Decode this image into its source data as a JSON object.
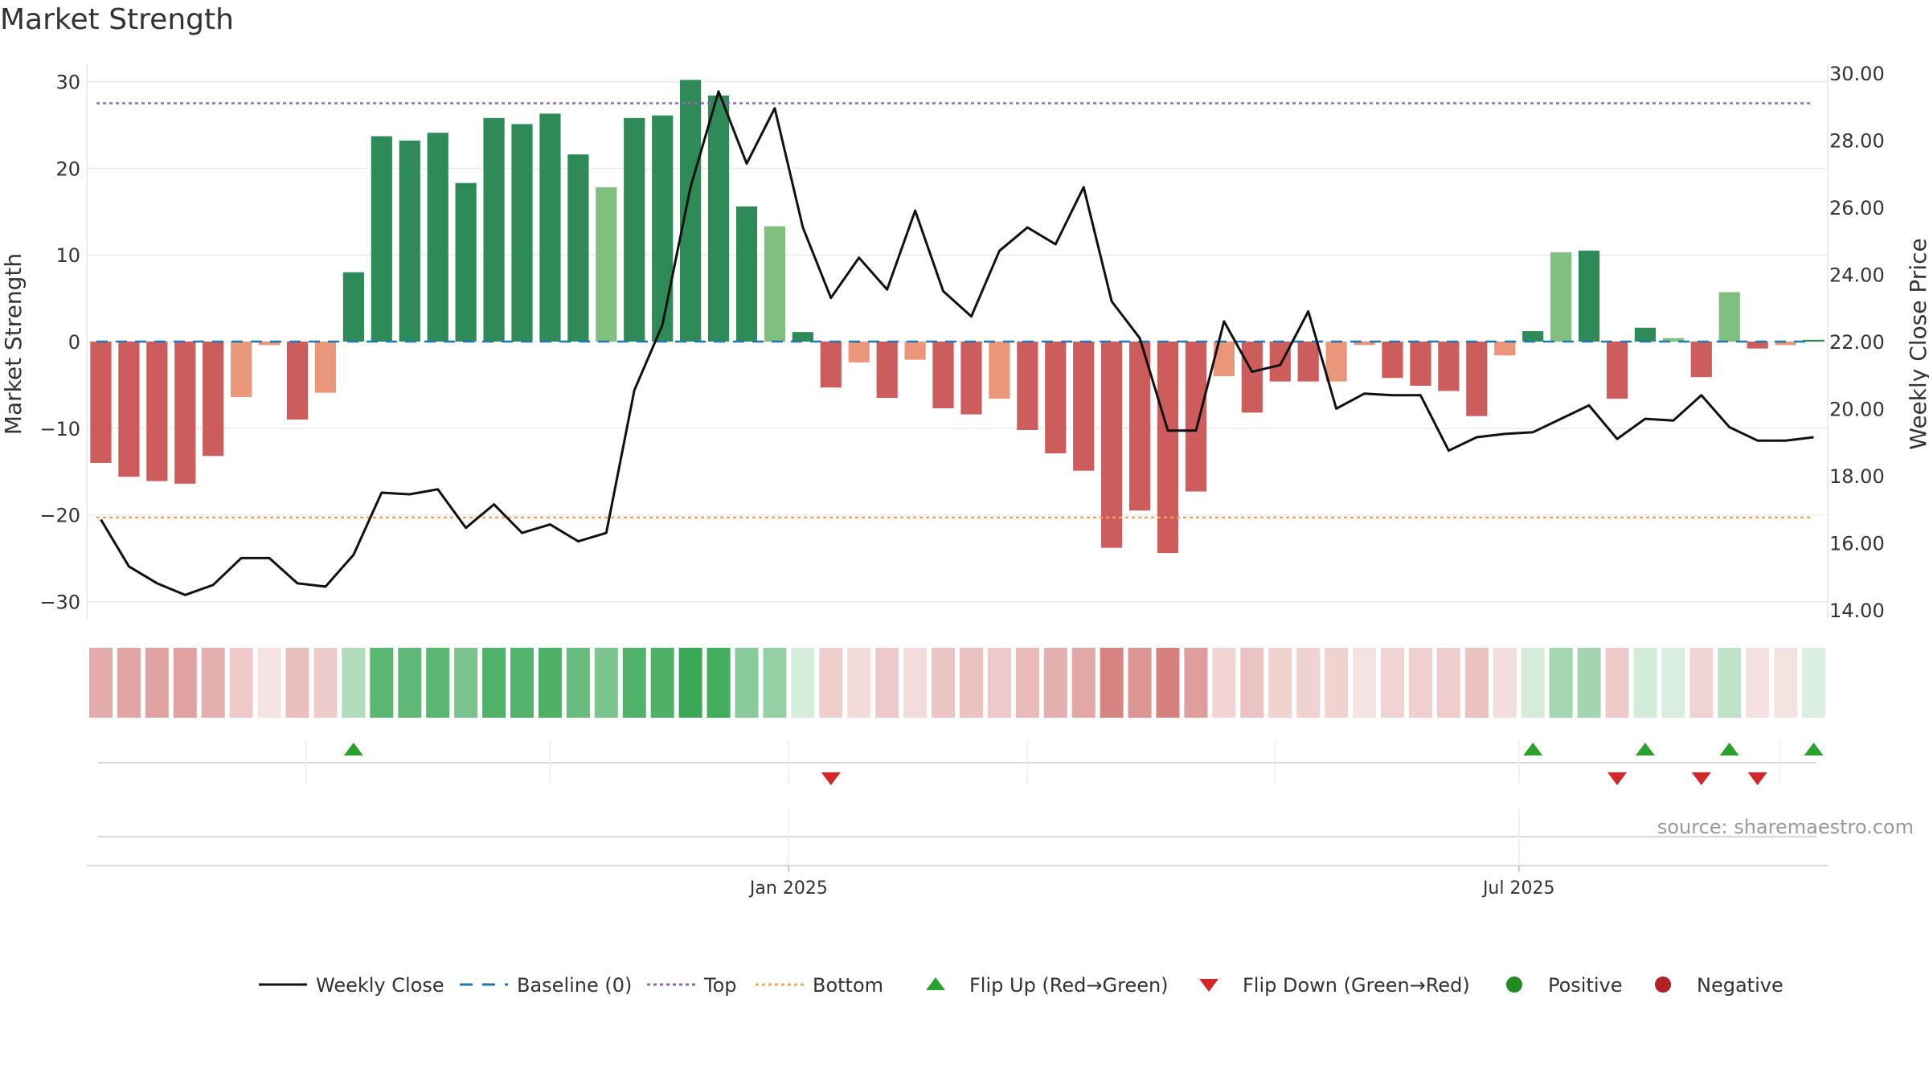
{
  "chart_data": {
    "type": "bar",
    "title": "Market Strength",
    "source_note": "source: sharemaestro.com",
    "left_axis": {
      "label": "Market Strength",
      "range": [
        -32,
        32
      ],
      "ticks": [
        30,
        20,
        10,
        0,
        -10,
        -20,
        -30
      ],
      "tick_labels": [
        "30",
        "20",
        "10",
        "0",
        "−10",
        "−20",
        "−30"
      ]
    },
    "right_axis": {
      "label": "Weekly Close Price",
      "range": [
        13.74,
        30.26
      ],
      "ticks": [
        30,
        28,
        26,
        24,
        22,
        20,
        18,
        16,
        14
      ],
      "tick_labels": [
        "30.00",
        "28.00",
        "26.00",
        "24.00",
        "22.00",
        "20.00",
        "18.00",
        "16.00",
        "14.00"
      ]
    },
    "x_axis": {
      "tick_labels": [
        "Jan 2025",
        "Jul 2025"
      ],
      "tick_indices": [
        24.5,
        50.5
      ],
      "minor_gridline_indices": [
        7.3,
        16,
        33,
        41.8
      ]
    },
    "reference_lines": {
      "baseline": 0,
      "top": 27.5,
      "bottom": -20.3
    },
    "bar_values": [
      -14,
      -15.6,
      -16.1,
      -16.4,
      -13.2,
      -6.4,
      -0.4,
      -9,
      -5.9,
      8,
      23.7,
      23.2,
      24.1,
      18.3,
      25.8,
      25.1,
      26.3,
      21.6,
      17.8,
      25.8,
      26.1,
      30.2,
      28.4,
      15.6,
      13.3,
      1.1,
      -5.3,
      -2.4,
      -6.5,
      -2.1,
      -7.7,
      -8.4,
      -6.6,
      -10.2,
      -12.9,
      -14.9,
      -23.8,
      -19.5,
      -24.4,
      -17.3,
      -4,
      -8.2,
      -4.6,
      -4.6,
      -4.6,
      -0.4,
      -4.2,
      -5.1,
      -5.7,
      -8.6,
      -1.6,
      1.2,
      10.3,
      10.5,
      -6.6,
      1.6,
      0.4,
      -4.1,
      5.7,
      -0.8,
      -0.4,
      0.2
    ],
    "weekly_close": [
      16.7,
      15.3,
      14.8,
      14.45,
      14.75,
      15.55,
      15.55,
      14.8,
      14.7,
      15.65,
      17.5,
      17.45,
      17.6,
      16.45,
      17.15,
      16.3,
      16.55,
      16.05,
      16.3,
      20.55,
      22.5,
      26.6,
      29.45,
      27.3,
      28.95,
      25.4,
      23.3,
      24.5,
      23.55,
      25.9,
      23.5,
      22.75,
      24.7,
      25.4,
      24.9,
      26.6,
      23.2,
      22.1,
      19.35,
      19.35,
      22.6,
      21.1,
      21.3,
      22.9,
      20,
      20.45,
      20.4,
      20.4,
      18.75,
      19.15,
      19.25,
      19.3,
      19.7,
      20.1,
      19.1,
      19.7,
      19.65,
      20.4,
      19.45,
      19.05,
      19.05,
      19.15
    ],
    "series_colors": {
      "line": "#111111",
      "baseline": "#1f77b4",
      "top": "#9467bd",
      "bottom": "#f4a261",
      "bar_pos_strong": "#2e8b57",
      "bar_pos_weak": "#7fbf7f",
      "bar_neg_strong": "#cd5c5c",
      "bar_neg_weak": "#e9967a"
    },
    "flip_up_indices": [
      9,
      51,
      55,
      58,
      61
    ],
    "flip_down_indices": [
      26,
      54,
      57,
      59
    ],
    "legend": [
      {
        "label": "Weekly Close",
        "kind": "line",
        "color": "#111111"
      },
      {
        "label": "Baseline (0)",
        "kind": "dashed",
        "color": "#1f77b4"
      },
      {
        "label": "Top",
        "kind": "dotted",
        "color": "#9467bd"
      },
      {
        "label": "Bottom",
        "kind": "dotted",
        "color": "#f4a261"
      },
      {
        "label": "Flip Up (Red→Green)",
        "kind": "tri-up",
        "color": "#2ca02c"
      },
      {
        "label": "Flip Down (Green→Red)",
        "kind": "tri-down",
        "color": "#d62728"
      },
      {
        "label": "Positive",
        "kind": "dot",
        "color": "#228b22"
      },
      {
        "label": "Negative",
        "kind": "dot",
        "color": "#b22222"
      }
    ]
  }
}
